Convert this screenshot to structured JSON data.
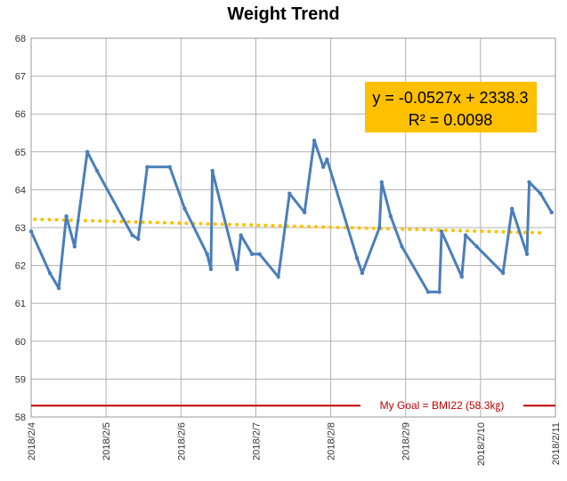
{
  "chart_data": {
    "type": "line",
    "title": "Weight Trend",
    "xlabel": "",
    "ylabel": "",
    "ylim": [
      58,
      68
    ],
    "yticks": [
      58,
      59,
      60,
      61,
      62,
      63,
      64,
      65,
      66,
      67,
      68
    ],
    "x_tick_labels": [
      "2018/2/4",
      "2018/2/5",
      "2018/2/6",
      "2018/2/7",
      "2018/2/8",
      "2018/2/9",
      "2018/2/10",
      "2018/2/11"
    ],
    "x_domain_days": [
      0,
      7
    ],
    "grid": true,
    "series": [
      {
        "color": "#4a7ebb",
        "points": [
          [
            0.0,
            62.9
          ],
          [
            0.25,
            61.8
          ],
          [
            0.37,
            61.4
          ],
          [
            0.47,
            63.3
          ],
          [
            0.58,
            62.5
          ],
          [
            0.75,
            65.0
          ],
          [
            0.88,
            64.5
          ],
          [
            1.35,
            62.8
          ],
          [
            1.43,
            62.7
          ],
          [
            1.55,
            64.6
          ],
          [
            1.85,
            64.6
          ],
          [
            2.05,
            63.5
          ],
          [
            2.35,
            62.3
          ],
          [
            2.4,
            61.9
          ],
          [
            2.42,
            64.5
          ],
          [
            2.75,
            61.9
          ],
          [
            2.8,
            62.8
          ],
          [
            2.95,
            62.3
          ],
          [
            3.05,
            62.3
          ],
          [
            3.3,
            61.7
          ],
          [
            3.45,
            63.9
          ],
          [
            3.65,
            63.4
          ],
          [
            3.78,
            65.3
          ],
          [
            3.9,
            64.6
          ],
          [
            3.95,
            64.8
          ],
          [
            4.35,
            62.2
          ],
          [
            4.42,
            61.8
          ],
          [
            4.65,
            63.0
          ],
          [
            4.68,
            64.2
          ],
          [
            4.8,
            63.3
          ],
          [
            4.95,
            62.5
          ],
          [
            5.3,
            61.3
          ],
          [
            5.45,
            61.3
          ],
          [
            5.48,
            62.9
          ],
          [
            5.75,
            61.7
          ],
          [
            5.8,
            62.8
          ],
          [
            5.95,
            62.5
          ],
          [
            6.3,
            61.8
          ],
          [
            6.42,
            63.5
          ],
          [
            6.62,
            62.3
          ],
          [
            6.65,
            64.2
          ],
          [
            6.8,
            63.9
          ],
          [
            6.95,
            63.4
          ]
        ]
      }
    ],
    "trendline": {
      "color": "#ffc000",
      "style": "dotted",
      "start": [
        0.05,
        63.22
      ],
      "end": [
        6.85,
        62.86
      ],
      "equation": "y = -0.0527x + 2338.3",
      "r2": "R² = 0.0098"
    },
    "goal_line": {
      "value": 58.3,
      "color": "#c00000",
      "label": "My Goal = BMI22 (58.3㎏)"
    }
  }
}
